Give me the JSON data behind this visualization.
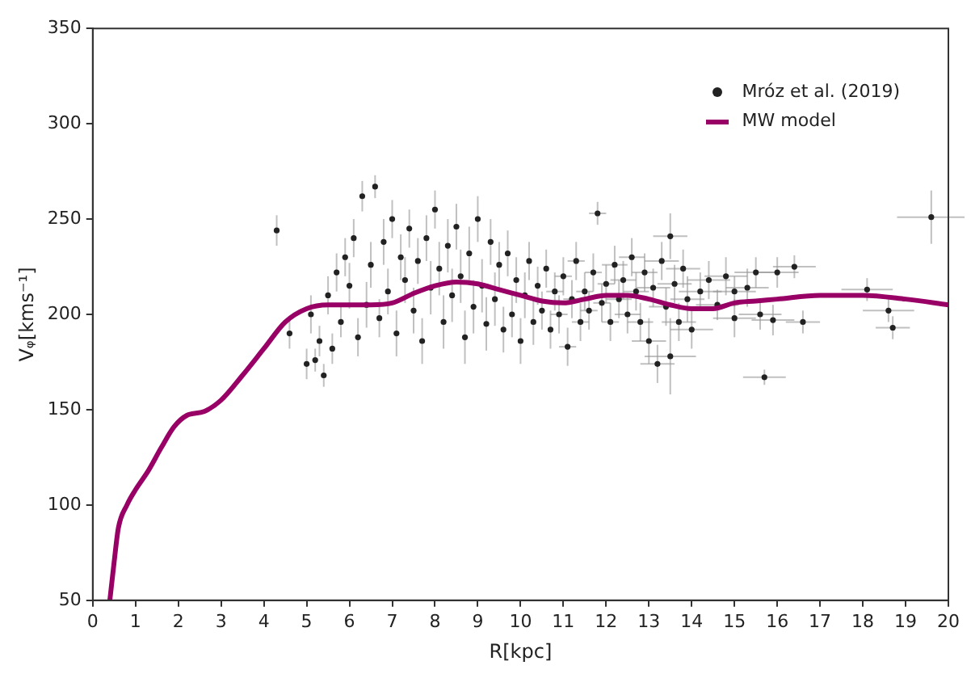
{
  "chart_data": {
    "type": "scatter",
    "xlabel": "R[kpc]",
    "ylabel": "Vᵩ[kms⁻¹]",
    "xlim": [
      0,
      20
    ],
    "ylim": [
      50,
      350
    ],
    "xticks": [
      0,
      1,
      2,
      3,
      4,
      5,
      6,
      7,
      8,
      9,
      10,
      11,
      12,
      13,
      14,
      15,
      16,
      17,
      18,
      19,
      20
    ],
    "yticks": [
      50,
      100,
      150,
      200,
      250,
      300,
      350
    ],
    "grid": false,
    "legend": "top right",
    "series": [
      {
        "name": "Mróz et al. (2019)",
        "type": "scatter",
        "marker": "circle",
        "color": "#222222",
        "x": [
          4.3,
          4.6,
          5.0,
          5.1,
          5.2,
          5.3,
          5.4,
          5.5,
          5.6,
          5.7,
          5.8,
          5.9,
          6.0,
          6.1,
          6.2,
          6.3,
          6.4,
          6.5,
          6.6,
          6.7,
          6.8,
          6.9,
          7.0,
          7.1,
          7.2,
          7.3,
          7.4,
          7.5,
          7.6,
          7.7,
          7.8,
          7.9,
          8.0,
          8.1,
          8.2,
          8.3,
          8.4,
          8.5,
          8.6,
          8.7,
          8.8,
          8.9,
          9.0,
          9.1,
          9.2,
          9.3,
          9.4,
          9.5,
          9.6,
          9.7,
          9.8,
          9.9,
          10.0,
          10.1,
          10.2,
          10.3,
          10.4,
          10.5,
          10.6,
          10.7,
          10.8,
          10.9,
          11.0,
          11.1,
          11.2,
          11.3,
          11.4,
          11.5,
          11.6,
          11.7,
          11.8,
          11.9,
          12.0,
          12.1,
          12.2,
          12.3,
          12.4,
          12.5,
          12.6,
          12.7,
          12.8,
          12.9,
          13.0,
          13.1,
          13.2,
          13.3,
          13.4,
          13.5,
          13.5,
          13.6,
          13.7,
          13.8,
          13.9,
          14.0,
          14.2,
          14.4,
          14.6,
          14.8,
          15.0,
          15.0,
          15.3,
          15.5,
          15.6,
          15.7,
          15.9,
          16.0,
          16.4,
          16.6,
          18.1,
          18.6,
          18.7,
          19.6
        ],
        "values": [
          244,
          190,
          174,
          200,
          176,
          186,
          168,
          210,
          182,
          222,
          196,
          230,
          215,
          240,
          188,
          262,
          205,
          226,
          267,
          198,
          238,
          212,
          250,
          190,
          230,
          218,
          245,
          202,
          228,
          186,
          240,
          214,
          255,
          224,
          196,
          236,
          210,
          246,
          220,
          188,
          232,
          204,
          250,
          215,
          195,
          238,
          208,
          226,
          192,
          232,
          200,
          218,
          186,
          210,
          228,
          196,
          215,
          202,
          224,
          192,
          212,
          200,
          220,
          183,
          208,
          228,
          196,
          212,
          202,
          222,
          253,
          206,
          216,
          196,
          226,
          208,
          218,
          200,
          230,
          212,
          196,
          222,
          186,
          214,
          174,
          228,
          204,
          241,
          178,
          216,
          196,
          224,
          208,
          192,
          212,
          218,
          205,
          220,
          198,
          212,
          214,
          222,
          200,
          167,
          197,
          222,
          225,
          196,
          213,
          202,
          193,
          251
        ],
        "errors": [
          8,
          8,
          8,
          10,
          6,
          8,
          6,
          10,
          8,
          10,
          8,
          10,
          12,
          10,
          10,
          8,
          12,
          12,
          6,
          10,
          12,
          12,
          10,
          12,
          12,
          12,
          10,
          12,
          12,
          12,
          12,
          14,
          10,
          14,
          14,
          14,
          14,
          12,
          14,
          14,
          14,
          14,
          12,
          14,
          14,
          12,
          14,
          12,
          12,
          12,
          12,
          12,
          12,
          12,
          10,
          12,
          10,
          10,
          10,
          10,
          10,
          10,
          10,
          10,
          10,
          10,
          10,
          10,
          10,
          10,
          6,
          10,
          10,
          10,
          10,
          10,
          10,
          10,
          10,
          10,
          10,
          10,
          12,
          10,
          10,
          10,
          10,
          12,
          20,
          10,
          10,
          10,
          12,
          10,
          10,
          10,
          8,
          10,
          10,
          8,
          10,
          8,
          8,
          4,
          8,
          8,
          6,
          6,
          6,
          6,
          6,
          14
        ],
        "xerrors": [
          null,
          null,
          null,
          null,
          null,
          null,
          null,
          null,
          null,
          null,
          null,
          null,
          null,
          null,
          null,
          null,
          null,
          null,
          null,
          null,
          null,
          null,
          null,
          null,
          null,
          null,
          null,
          null,
          null,
          null,
          null,
          null,
          null,
          null,
          null,
          null,
          null,
          null,
          null,
          null,
          null,
          null,
          null,
          null,
          null,
          null,
          null,
          null,
          null,
          null,
          null,
          null,
          null,
          null,
          null,
          null,
          null,
          null,
          null,
          null,
          0.2,
          0.2,
          0.2,
          0.2,
          0.2,
          0.2,
          0.2,
          0.2,
          0.2,
          0.2,
          0.2,
          0.2,
          0.2,
          0.2,
          0.3,
          0.3,
          0.3,
          0.3,
          0.3,
          0.3,
          0.3,
          0.3,
          0.4,
          0.4,
          0.4,
          0.4,
          0.4,
          0.4,
          0.6,
          0.4,
          0.4,
          0.4,
          0.4,
          0.5,
          0.5,
          0.5,
          0.5,
          0.5,
          0.5,
          0.5,
          0.5,
          0.5,
          0.5,
          0.5,
          0.5,
          0.5,
          0.5,
          0.4,
          0.6,
          0.6,
          0.4,
          0.8
        ]
      },
      {
        "name": "MW model",
        "type": "line",
        "color": "#990066",
        "x": [
          0.4,
          0.5,
          0.6,
          0.8,
          1.0,
          1.3,
          1.6,
          1.9,
          2.2,
          2.6,
          3.0,
          3.5,
          4.0,
          4.5,
          5.0,
          5.5,
          6.0,
          6.5,
          7.0,
          7.5,
          8.0,
          8.5,
          9.0,
          9.5,
          10.0,
          10.5,
          11.0,
          11.5,
          12.0,
          12.5,
          13.0,
          13.5,
          14.0,
          14.5,
          15.0,
          15.5,
          16.0,
          17.0,
          18.0,
          19.0,
          20.0
        ],
        "values": [
          50,
          70,
          88,
          100,
          108,
          118,
          130,
          141,
          147,
          149,
          155,
          168,
          182,
          196,
          203,
          205,
          205,
          205,
          206,
          211,
          215,
          217,
          216,
          213,
          210,
          207,
          206,
          208,
          210,
          210,
          208,
          205,
          203,
          203,
          206,
          207,
          208,
          210,
          210,
          208,
          205
        ]
      }
    ]
  }
}
